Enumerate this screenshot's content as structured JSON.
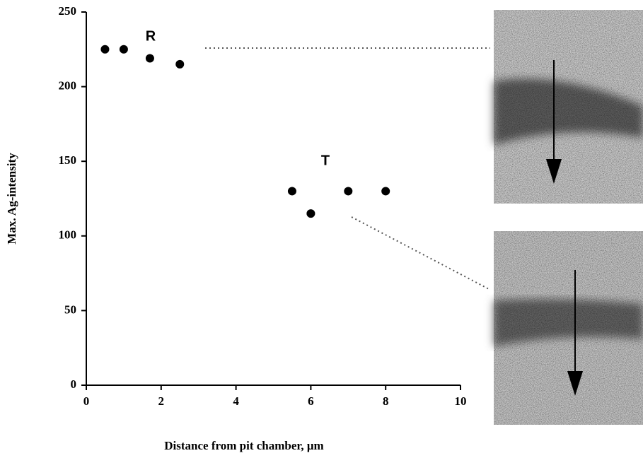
{
  "chart_data": {
    "type": "scatter",
    "x_label": "Distance from pit chamber, μm",
    "y_label": "Max. Ag-intensity",
    "annotations": [
      "R",
      "T"
    ],
    "x": [
      0.5,
      1.0,
      1.7,
      2.5,
      5.5,
      6.0,
      7.0,
      8.0
    ],
    "values": [
      225,
      225,
      219,
      215,
      130,
      115,
      130,
      130
    ],
    "color": "#000000",
    "xlim": [
      0,
      10
    ],
    "xticks": [
      0,
      2,
      4,
      6,
      8,
      10
    ],
    "ylim": [
      0,
      250
    ],
    "yticks": [
      0,
      50,
      100,
      150,
      200,
      250
    ],
    "grid": false
  }
}
